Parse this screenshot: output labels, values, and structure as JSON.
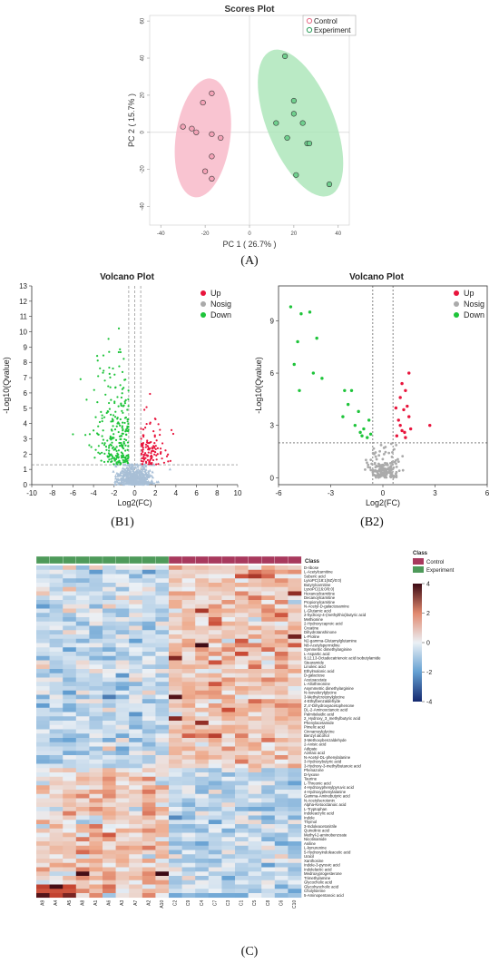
{
  "captions": {
    "a": "(A)",
    "b1": "(B1)",
    "b2": "(B2)",
    "c": "(C)"
  },
  "colors": {
    "control": "#e56b86",
    "control_fill": "#f7b5c5",
    "experiment": "#2e9e5c",
    "experiment_fill": "#a9e5b7",
    "up": "#e8143c",
    "down": "#1ec43a",
    "nosig_b1": "#a8bfd6",
    "nosig_b2": "#aaaaaa"
  },
  "chart_data": [
    {
      "id": "scores",
      "type": "scatter",
      "title": "Scores Plot",
      "xlabel": "PC 1 ( 26.7% )",
      "ylabel": "PC 2 ( 15.7% )",
      "xlim": [
        -45,
        45
      ],
      "ylim": [
        -50,
        63
      ],
      "xticks": [
        -40,
        -20,
        0,
        20,
        40
      ],
      "yticks": [
        -40,
        -20,
        0,
        20,
        40,
        60
      ],
      "legend_position": "top-right",
      "series": [
        {
          "name": "Control",
          "points": [
            [
              -30,
              3
            ],
            [
              -26,
              2
            ],
            [
              -24,
              0
            ],
            [
              -21,
              16
            ],
            [
              -20,
              -21
            ],
            [
              -17,
              21
            ],
            [
              -17,
              -1
            ],
            [
              -17,
              -13
            ],
            [
              -17,
              -25
            ],
            [
              -13,
              -3
            ]
          ]
        },
        {
          "name": "Experiment",
          "points": [
            [
              12,
              5
            ],
            [
              16,
              41
            ],
            [
              17,
              -3
            ],
            [
              20,
              17
            ],
            [
              20,
              10
            ],
            [
              21,
              -23
            ],
            [
              24,
              5
            ],
            [
              26,
              -6
            ],
            [
              27,
              -6
            ],
            [
              36,
              -28
            ]
          ]
        }
      ]
    },
    {
      "id": "volcano_b1",
      "type": "scatter",
      "title": "Volcano Plot",
      "xlabel": "Log2(FC)",
      "ylabel": "-Log10(Qvalue)",
      "xlim": [
        -10,
        10
      ],
      "ylim": [
        0,
        13
      ],
      "xticks": [
        -10,
        -8,
        -6,
        -4,
        -2,
        0,
        2,
        4,
        6,
        8,
        10
      ],
      "yticks": [
        0,
        1,
        2,
        3,
        4,
        5,
        6,
        7,
        8,
        9,
        10,
        11,
        12,
        13
      ],
      "legend": [
        "Up",
        "Nosig",
        "Down"
      ],
      "legend_position": "top-right",
      "threshold_lines": {
        "x": [
          -0.58,
          0,
          0.58
        ],
        "y": 1.3
      }
    },
    {
      "id": "volcano_b2",
      "type": "scatter",
      "title": "Volcano Plot",
      "xlabel": "Log2(FC)",
      "ylabel": "-Log10(Qvalue)",
      "xlim": [
        -6,
        6
      ],
      "ylim": [
        -0.4,
        11
      ],
      "xticks": [
        -6,
        -3,
        0,
        3,
        6
      ],
      "yticks": [
        0,
        3,
        6,
        9
      ],
      "legend": [
        "Up",
        "Nosig",
        "Down"
      ],
      "legend_position": "top-right",
      "threshold_lines": {
        "x": [
          -0.58,
          0.58
        ],
        "y": 2
      },
      "up": [
        [
          0.8,
          2.4
        ],
        [
          0.9,
          3.3
        ],
        [
          1.0,
          4.6
        ],
        [
          1.1,
          2.7
        ],
        [
          1.2,
          3.9
        ],
        [
          1.3,
          5.0
        ],
        [
          1.4,
          4.1
        ],
        [
          1.5,
          3.5
        ],
        [
          1.6,
          2.8
        ],
        [
          1.3,
          2.3
        ],
        [
          1.1,
          5.4
        ],
        [
          1.5,
          6.0
        ],
        [
          2.7,
          3.0
        ],
        [
          0.75,
          4.0
        ],
        [
          1.0,
          3.0
        ],
        [
          1.25,
          2.6
        ]
      ],
      "down": [
        [
          -5.3,
          9.8
        ],
        [
          -4.7,
          9.4
        ],
        [
          -4.2,
          9.5
        ],
        [
          -4.9,
          7.8
        ],
        [
          -4.8,
          5.0
        ],
        [
          -4.0,
          6.0
        ],
        [
          -3.8,
          8.0
        ],
        [
          -3.5,
          5.7
        ],
        [
          -5.1,
          6.5
        ],
        [
          -2.3,
          3.5
        ],
        [
          -2.0,
          4.2
        ],
        [
          -1.8,
          5.0
        ],
        [
          -1.6,
          3.0
        ],
        [
          -1.3,
          2.6
        ],
        [
          -1.1,
          2.8
        ],
        [
          -0.9,
          2.3
        ],
        [
          -1.4,
          3.8
        ],
        [
          -0.8,
          3.3
        ],
        [
          -1.2,
          2.4
        ],
        [
          -0.7,
          2.5
        ],
        [
          -2.2,
          5.0
        ]
      ]
    },
    {
      "id": "heatmap",
      "type": "heatmap",
      "columns": [
        "A9",
        "A4",
        "A5",
        "A8",
        "A1",
        "A6",
        "A3",
        "A7",
        "A2",
        "A10",
        "C2",
        "C9",
        "C4",
        "C7",
        "C3",
        "C1",
        "C5",
        "C8",
        "C6",
        "C10"
      ],
      "column_groups": [
        "Experiment",
        "Experiment",
        "Experiment",
        "Experiment",
        "Experiment",
        "Experiment",
        "Experiment",
        "Experiment",
        "Experiment",
        "Experiment",
        "Control",
        "Control",
        "Control",
        "Control",
        "Control",
        "Control",
        "Control",
        "Control",
        "Control",
        "Control"
      ],
      "class_label": "Class",
      "legend_title": "Class",
      "legend_items": [
        "Control",
        "Experiment"
      ],
      "scale_ticks": [
        4,
        2,
        0,
        -2,
        -4
      ],
      "rows": [
        "D-ribose",
        "L-Acetylcarnitine",
        "Suberic acid",
        "LysoPC(18:1(9Z)/0:0)",
        "Butyrylcarnitine",
        "LysoPC(16:0/0:0)",
        "Hexanoylcarnitine",
        "Decanoylcarnitine",
        "Propionylcarnitine",
        "N-Acetyl-D-galactosamine",
        "L-Glutamic acid",
        "2-hydroxy-4-(methylthio)butyric acid",
        "Methionine",
        "2-Hydroxycaproic acid",
        "Creatine",
        "Dihydrotanshinone",
        "L-Proline",
        "N2-gamma-Glutamylglutamine",
        "N8-Acetylspermidine",
        "Symmetric dimethylarginine",
        "L-Aspartic acid",
        "9,12,13-Octadecatrienoic acid isobutylamide",
        "Stearamide",
        "Linoleic acid",
        "Ethylmalonic acid",
        "D-galactose",
        "Acetoacetate",
        "L-Allothreonine",
        "Asymmetric dimethylarginine",
        "N-Isovalerylglycine",
        "3-Methylcrotonylglycine",
        "4-Ethylbenzaldehyde",
        "2',4'-Dihydroxyacetophenone",
        "DL-2-Aminooctanoic acid",
        "Palmitelaidic acid",
        "2_Hydroxy_3_methylbutyric acid",
        "Phenylacetamide",
        "Pimelic acid",
        "Cinnamoylglycine",
        "Benzyl alcohol",
        "3-Methoxybenzaldehyde",
        "2-Anisic acid",
        "Adipate",
        "Azelaic acid",
        "N-Acetyl-DL-phenylalanine",
        "3-Hydroxybutyric acid",
        "3-Hydroxy-3-methylbutanoic acid",
        "Phenazone",
        "D-lyxose",
        "Taurine",
        "L-Threonic acid",
        "4-Hydroxyphenylpyruvic acid",
        "4-Hydroxyphenylalanine",
        "Gamma-Aminobutyric acid",
        "N-Acetylserotonin",
        "Alpha-Ketooctanoic acid",
        "L-Tryptophan",
        "Indoleacrylic acid",
        "Indole",
        "Thymol",
        "3-Indoleacetonitrile",
        "Quinolinic acid",
        "Methyl-2-aminobenzoate",
        "Nicotinamide",
        "Aniline",
        "L-kynurenine",
        "5-Hydroxyindoleacetic acid",
        "Uracil",
        "Xanthosine",
        "Indole-3-pyruvic acid",
        "Indolelactic acid",
        "Medroxyprogesterone",
        "Trimethylamine",
        "Glycocholic acid",
        "Glycohyocholic acid",
        "Cholylserine",
        "5-Aminopentanoic acid"
      ]
    }
  ]
}
